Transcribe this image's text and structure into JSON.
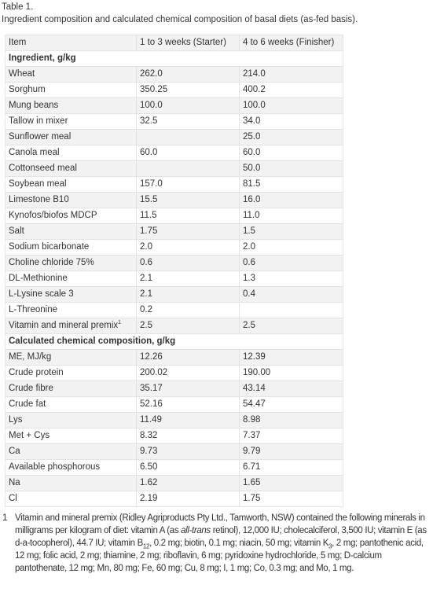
{
  "caption": {
    "label": "Table 1.",
    "text": "Ingredient composition and calculated chemical composition of basal diets (as-fed basis)."
  },
  "table": {
    "headers": [
      "Item",
      "1 to 3 weeks (Starter)",
      "4 to 6 weeks (Finisher)"
    ],
    "section_ingredient": "Ingredient, g/kg",
    "ingredient_rows": [
      {
        "item": "Wheat",
        "starter": "262.0",
        "finisher": "214.0"
      },
      {
        "item": "Sorghum",
        "starter": "350.25",
        "finisher": "400.2"
      },
      {
        "item": "Mung beans",
        "starter": "100.0",
        "finisher": "100.0"
      },
      {
        "item": "Tallow in mixer",
        "starter": "32.5",
        "finisher": "34.0"
      },
      {
        "item": "Sunflower meal",
        "starter": "",
        "finisher": "25.0"
      },
      {
        "item": "Canola meal",
        "starter": "60.0",
        "finisher": "60.0"
      },
      {
        "item": "Cottonseed meal",
        "starter": "",
        "finisher": "50.0"
      },
      {
        "item": "Soybean meal",
        "starter": "157.0",
        "finisher": "81.5"
      },
      {
        "item": "Limestone B10",
        "starter": "15.5",
        "finisher": "16.0"
      },
      {
        "item": "Kynofos/biofos MDCP",
        "starter": "11.5",
        "finisher": "11.0"
      },
      {
        "item": "Salt",
        "starter": "1.75",
        "finisher": "1.5"
      },
      {
        "item": "Sodium bicarbonate",
        "starter": "2.0",
        "finisher": "2.0"
      },
      {
        "item": "Choline chloride 75%",
        "starter": "0.6",
        "finisher": "0.6"
      },
      {
        "item": "DL-Methionine",
        "starter": "2.1",
        "finisher": "1.3"
      },
      {
        "item": "L-Lysine scale 3",
        "starter": "2.1",
        "finisher": "0.4"
      },
      {
        "item": "L-Threonine",
        "starter": "0.2",
        "finisher": ""
      },
      {
        "item": "Vitamin and mineral premix",
        "sup": "1",
        "starter": "2.5",
        "finisher": "2.5"
      }
    ],
    "section_chemical": "Calculated chemical composition, g/kg",
    "chemical_rows": [
      {
        "item": "ME, MJ/kg",
        "starter": "12.26",
        "finisher": "12.39"
      },
      {
        "item": "Crude protein",
        "starter": "200.02",
        "finisher": "190.00"
      },
      {
        "item": "Crude fibre",
        "starter": "35.17",
        "finisher": "43.14"
      },
      {
        "item": "Crude fat",
        "starter": "52.16",
        "finisher": "54.47"
      },
      {
        "item": "Lys",
        "starter": "11.49",
        "finisher": "8.98"
      },
      {
        "item": "Met + Cys",
        "starter": "8.32",
        "finisher": "7.37"
      },
      {
        "item": "Ca",
        "starter": "9.73",
        "finisher": "9.79"
      },
      {
        "item": "Available phosphorous",
        "starter": "6.50",
        "finisher": "6.71"
      },
      {
        "item": "Na",
        "starter": "1.62",
        "finisher": "1.65"
      },
      {
        "item": "Cl",
        "starter": "2.19",
        "finisher": "1.75"
      }
    ]
  },
  "footnote": {
    "mark": "1",
    "t1": "Vitamin and mineral premix (Ridley Agriproducts Pty Ltd., Tamworth, NSW) contained the following minerals in milligrams per kilogram of diet: vitamin A (as ",
    "t2": "all-trans",
    "t3": " retinol), 12,000 IU; cholecalciferol, 3,500 IU; vitamin E (as d-a-tocopherol), 44.7 IU; vitamin B",
    "t4": "12",
    "t5": ", 0.2 mg; biotin, 0.1 mg; niacin, 50 mg; vitamin K",
    "t6": "3",
    "t7": ", 2 mg; pantothenic acid, 12 mg; folic acid, 2 mg; thiamine, 2 mg; riboflavin, 6 mg; pyridoxine hydrochloride, 5 mg; D-calcium pantothenate, 12 mg; Mn, 80 mg; Fe, 60 mg; Cu, 8 mg; I, 1 mg; Co, 0.3 mg; and Mo, 1 mg."
  }
}
